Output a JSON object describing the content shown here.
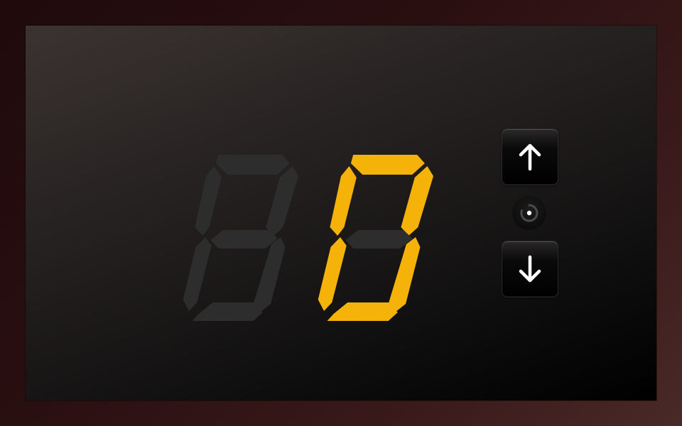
{
  "display": {
    "digits": [
      {
        "position": "tens",
        "value": "",
        "lit_color": "#f5b30a",
        "unlit_color": "#2d2d2d",
        "lit": false
      },
      {
        "position": "ones",
        "value": "0",
        "lit_color": "#f5b30a",
        "unlit_color": "#2d2d2d",
        "lit": true
      }
    ]
  },
  "controls": {
    "up_icon": "arrow-up-icon",
    "down_icon": "arrow-down-icon",
    "indicator_icon": "loading-ring-icon"
  },
  "colors": {
    "segment_on": "#f5b30a",
    "segment_off": "#2d2d2d",
    "icon": "#ffffff"
  }
}
